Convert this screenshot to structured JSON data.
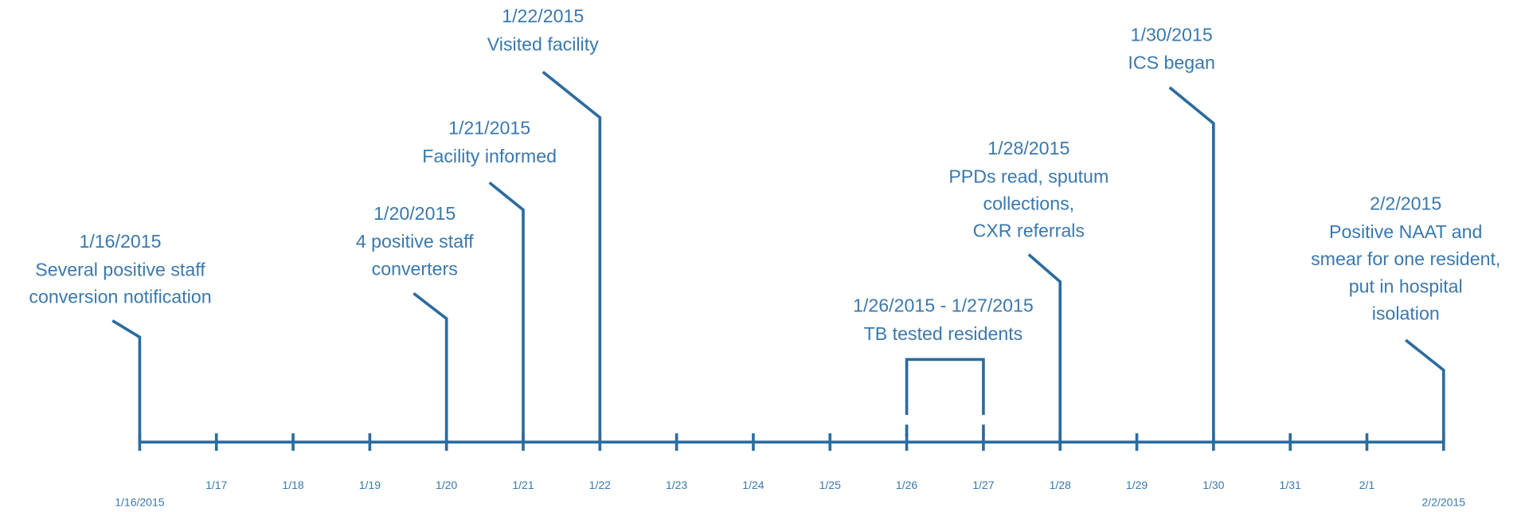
{
  "ticks": [
    "1/16/2015",
    "1/17",
    "1/18",
    "1/19",
    "1/20",
    "1/21",
    "1/22",
    "1/23",
    "1/24",
    "1/25",
    "1/26",
    "1/27",
    "1/28",
    "1/29",
    "1/30",
    "1/31",
    "2/1",
    "2/2/2015"
  ],
  "events": [
    {
      "date": "1/16/2015",
      "text": [
        "Several positive staff",
        "conversion notification"
      ]
    },
    {
      "date": "1/20/2015",
      "text": [
        "4 positive staff",
        "converters"
      ]
    },
    {
      "date": "1/21/2015",
      "text": [
        "Facility informed"
      ]
    },
    {
      "date": "1/22/2015",
      "text": [
        "Visited facility"
      ]
    },
    {
      "date": "1/26/2015 - 1/27/2015",
      "text": [
        "TB tested residents"
      ]
    },
    {
      "date": "1/28/2015",
      "text": [
        "PPDs read, sputum",
        "collections,",
        "CXR referrals"
      ]
    },
    {
      "date": "1/30/2015",
      "text": [
        "ICS began"
      ]
    },
    {
      "date": "2/2/2015",
      "text": [
        "Positive NAAT and",
        "smear for one resident,",
        "put in hospital",
        "isolation"
      ]
    }
  ]
}
